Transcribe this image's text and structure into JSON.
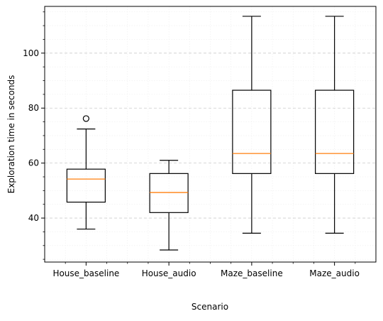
{
  "chart_data": {
    "type": "box",
    "xlabel": "Scenario",
    "ylabel": "Exploration time in seconds",
    "ylim": [
      24,
      117
    ],
    "yticks": [
      40,
      60,
      80,
      100
    ],
    "yminor_step": 5,
    "grid": {
      "major": true,
      "minor": true,
      "axis": "y"
    },
    "colors": {
      "box": "#000000",
      "median": "#ff7f0e",
      "major_grid": "#cccccc",
      "minor_grid": "#eeeeee"
    },
    "categories": [
      "House_baseline",
      "House_audio",
      "Maze_baseline",
      "Maze_audio"
    ],
    "boxes": [
      {
        "label": "House_baseline",
        "whisker_low": 36,
        "q1": 45.8,
        "median": 54.2,
        "q3": 57.8,
        "whisker_high": 72.4,
        "outliers": [
          76.2
        ]
      },
      {
        "label": "House_audio",
        "whisker_low": 28.4,
        "q1": 42.0,
        "median": 49.3,
        "q3": 56.2,
        "whisker_high": 61.0,
        "outliers": []
      },
      {
        "label": "Maze_baseline",
        "whisker_low": 34.5,
        "q1": 56.2,
        "median": 63.5,
        "q3": 86.5,
        "whisker_high": 113.4,
        "outliers": []
      },
      {
        "label": "Maze_audio",
        "whisker_low": 34.5,
        "q1": 56.2,
        "median": 63.5,
        "q3": 86.5,
        "whisker_high": 113.4,
        "outliers": []
      }
    ]
  }
}
